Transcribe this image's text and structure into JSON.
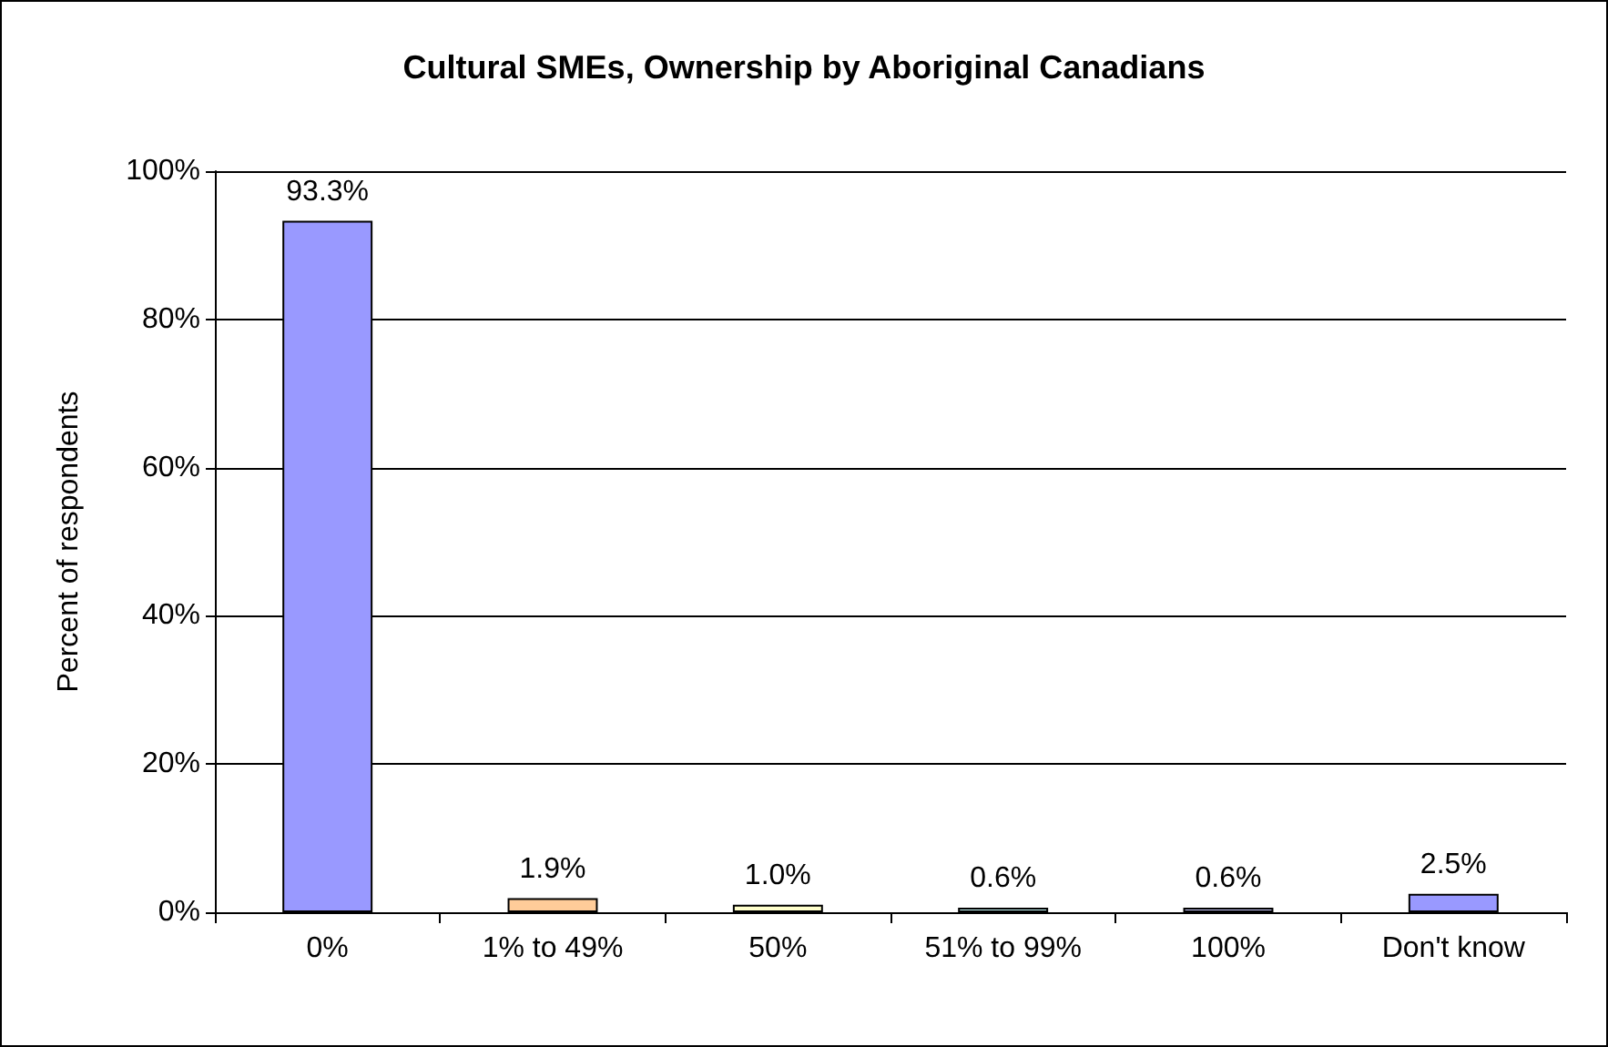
{
  "chart_data": {
    "type": "bar",
    "title": "Cultural SMEs, Ownership by Aboriginal Canadians",
    "ylabel": "Percent of respondents",
    "categories": [
      "0%",
      "1% to 49%",
      "50%",
      "51% to 99%",
      "100%",
      "Don't know"
    ],
    "values": [
      93.3,
      1.9,
      1.0,
      0.6,
      0.6,
      2.5
    ],
    "colors": [
      "#9999ff",
      "#ffcc99",
      "#ffffcc",
      "#ccffff",
      "#ccccff",
      "#9999ff"
    ],
    "value_labels": [
      "93.3%",
      "1.9%",
      "1.0%",
      "0.6%",
      "0.6%",
      "2.5%"
    ],
    "ylim": [
      0,
      100
    ],
    "yticks": [
      {
        "value": 0,
        "label": "0%"
      },
      {
        "value": 20,
        "label": "20%"
      },
      {
        "value": 40,
        "label": "40%"
      },
      {
        "value": 60,
        "label": "60%"
      },
      {
        "value": 80,
        "label": "80%"
      },
      {
        "value": 100,
        "label": "100%"
      }
    ],
    "grid": "y"
  }
}
